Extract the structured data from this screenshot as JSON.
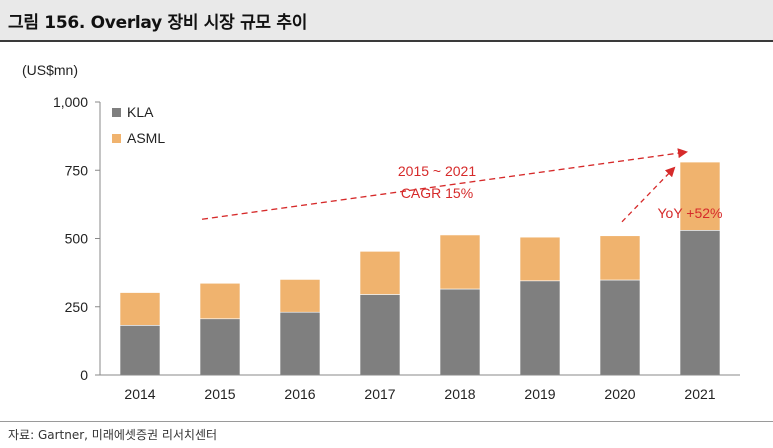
{
  "title": "그림 156. Overlay 장비 시장 규모 추이",
  "source": "자료: Gartner, 미래에셋증권 리서치센터",
  "colors": {
    "kla": "#7f7f7f",
    "asml": "#f0b36e",
    "annotation": "#d62a2a",
    "axis": "#888888"
  },
  "chart_data": {
    "type": "bar",
    "stacked": true,
    "unit_label": "(US$mn)",
    "categories": [
      "2014",
      "2015",
      "2016",
      "2017",
      "2018",
      "2019",
      "2020",
      "2021"
    ],
    "series": [
      {
        "name": "KLA",
        "values": [
          182,
          206,
          230,
          295,
          315,
          345,
          348,
          530
        ]
      },
      {
        "name": "ASML",
        "values": [
          120,
          130,
          120,
          158,
          198,
          160,
          162,
          250
        ]
      }
    ],
    "ylim": [
      0,
      1000
    ],
    "yticks": [
      "0",
      "250",
      "500",
      "750",
      "1,000"
    ],
    "legend_position": "top-left",
    "annotations": {
      "cagr_line1": "2015 ~ 2021",
      "cagr_line2": "CAGR 15%",
      "yoy": "YoY +52%"
    }
  }
}
